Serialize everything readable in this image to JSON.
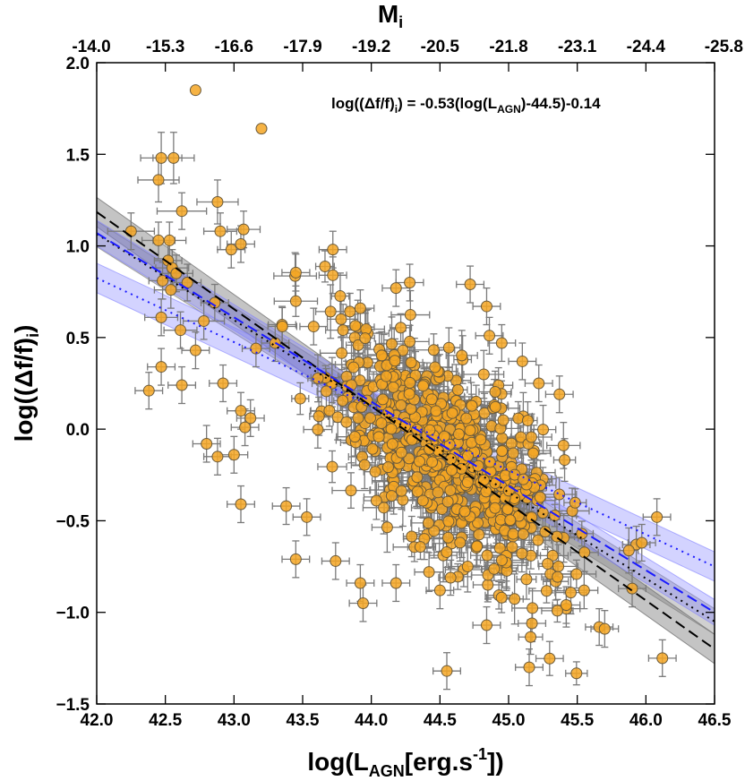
{
  "chart_data": {
    "type": "scatter",
    "title": "",
    "xlabel": "log(L_AGN[erg.s^-1])",
    "xlabel_parts": {
      "pre": "log(L",
      "sub": "AGN",
      "mid": "[erg.s",
      "sup": "-1",
      "post": "])"
    },
    "ylabel": "log((Δf/f)_i)",
    "ylabel_parts": {
      "pre": "log((Δf/f)",
      "sub": "i",
      "post": ")"
    },
    "top_axis_label": "M_i",
    "top_axis_parts": {
      "pre": "M",
      "sub": "i"
    },
    "xlim": [
      42.0,
      46.5
    ],
    "ylim": [
      -1.5,
      2.0
    ],
    "x_ticks": [
      "42.0",
      "42.5",
      "43.0",
      "43.5",
      "44.0",
      "44.5",
      "45.0",
      "45.5",
      "46.0",
      "46.5"
    ],
    "y_ticks": [
      "2.0",
      "1.5",
      "1.0",
      "0.5",
      "0.0",
      "−0.5",
      "−1.0",
      "−1.5"
    ],
    "top_ticks": [
      "-14.0",
      "-15.3",
      "-16.6",
      "-17.9",
      "-19.2",
      "-20.5",
      "-21.8",
      "-23.1",
      "-24.4",
      "-25.8"
    ],
    "annotation": {
      "pre": "log((Δf/f)",
      "sub": "i",
      "mid": ") = -0.53(log(L",
      "sub2": "AGN",
      "post": ")-44.5)-0.14"
    },
    "fits": [
      {
        "name": "black dashed fit",
        "slope": -0.53,
        "pivot": 44.5,
        "intercept": -0.14,
        "color": "#000000",
        "style": "dashed",
        "band": 0.05,
        "band_color": "#555555"
      },
      {
        "name": "black dotted fit",
        "slope": -0.47,
        "pivot": 44.5,
        "intercept": -0.11,
        "color": "#000000",
        "style": "dotted",
        "band": 0.04,
        "band_color": "#777777"
      },
      {
        "name": "blue dashed fit",
        "slope": -0.46,
        "pivot": 44.5,
        "intercept": -0.08,
        "color": "#1a1aff",
        "style": "dashed",
        "band": 0.04,
        "band_color": "#8080ff"
      },
      {
        "name": "blue dotted fit",
        "slope": -0.35,
        "pivot": 44.5,
        "intercept": -0.05,
        "color": "#1a1aff",
        "style": "dotted",
        "band": 0.05,
        "band_color": "#8080ff"
      }
    ],
    "points": [
      [
        42.72,
        1.85,
        0.0,
        0.0
      ],
      [
        43.2,
        1.64,
        0.0,
        0.0
      ],
      [
        42.47,
        1.48,
        0.15,
        0.14
      ],
      [
        42.56,
        1.48,
        0.15,
        0.14
      ],
      [
        42.45,
        1.36,
        0.15,
        0.12
      ],
      [
        42.62,
        1.19,
        0.18,
        0.1
      ],
      [
        42.88,
        1.24,
        0.15,
        0.12
      ],
      [
        42.25,
        1.08,
        0.17,
        0.1
      ],
      [
        42.45,
        1.03,
        0.12,
        0.1
      ],
      [
        42.53,
        1.03,
        0.12,
        0.1
      ],
      [
        43.07,
        1.09,
        0.12,
        0.1
      ],
      [
        42.9,
        1.08,
        0.12,
        0.1
      ],
      [
        43.05,
        1.01,
        0.1,
        0.1
      ],
      [
        42.98,
        0.98,
        0.1,
        0.1
      ],
      [
        42.52,
        0.92,
        0.1,
        0.1
      ],
      [
        42.55,
        0.88,
        0.12,
        0.1
      ],
      [
        42.58,
        0.85,
        0.12,
        0.1
      ],
      [
        42.48,
        0.81,
        0.1,
        0.1
      ],
      [
        42.66,
        0.8,
        0.1,
        0.1
      ],
      [
        42.54,
        0.76,
        0.12,
        0.1
      ],
      [
        42.86,
        0.69,
        0.1,
        0.1
      ],
      [
        42.47,
        0.61,
        0.12,
        0.1
      ],
      [
        42.78,
        0.59,
        0.15,
        0.1
      ],
      [
        42.61,
        0.54,
        0.12,
        0.1
      ],
      [
        42.72,
        0.43,
        0.1,
        0.1
      ],
      [
        42.47,
        0.34,
        0.1,
        0.1
      ],
      [
        42.92,
        0.25,
        0.1,
        0.1
      ],
      [
        42.62,
        0.24,
        0.1,
        0.1
      ],
      [
        42.38,
        0.21,
        0.1,
        0.1
      ],
      [
        43.05,
        0.1,
        0.1,
        0.1
      ],
      [
        43.12,
        0.06,
        0.1,
        0.1
      ],
      [
        43.08,
        0.01,
        0.1,
        0.1
      ],
      [
        42.8,
        -0.08,
        0.1,
        0.1
      ],
      [
        42.88,
        -0.15,
        0.1,
        0.1
      ],
      [
        43.0,
        -0.14,
        0.1,
        0.1
      ],
      [
        43.05,
        -0.41,
        0.1,
        0.1
      ],
      [
        43.38,
        -0.42,
        0.1,
        0.1
      ],
      [
        43.53,
        -0.48,
        0.1,
        0.1
      ],
      [
        43.45,
        -0.71,
        0.1,
        0.1
      ],
      [
        43.74,
        -0.72,
        0.1,
        0.1
      ],
      [
        43.92,
        -0.84,
        0.1,
        0.1
      ],
      [
        43.94,
        -0.95,
        0.1,
        0.1
      ],
      [
        44.18,
        -0.84,
        0.1,
        0.1
      ],
      [
        44.5,
        -0.88,
        0.1,
        0.1
      ],
      [
        44.55,
        -1.32,
        0.1,
        0.1
      ],
      [
        44.84,
        -1.07,
        0.1,
        0.1
      ],
      [
        45.15,
        -1.3,
        0.1,
        0.1
      ],
      [
        45.17,
        -1.06,
        0.1,
        0.1
      ],
      [
        45.42,
        -0.98,
        0.1,
        0.1
      ],
      [
        45.42,
        -0.96,
        0.1,
        0.1
      ],
      [
        45.66,
        -1.08,
        0.1,
        0.1
      ],
      [
        45.7,
        -1.09,
        0.1,
        0.1
      ],
      [
        46.12,
        -1.25,
        0.1,
        0.1
      ],
      [
        46.08,
        -0.48,
        0.1,
        0.1
      ],
      [
        45.9,
        -0.87,
        0.1,
        0.1
      ],
      [
        45.93,
        -0.63,
        0.1,
        0.1
      ],
      [
        45.97,
        -0.62,
        0.1,
        0.1
      ],
      [
        45.55,
        -0.88,
        0.1,
        0.1
      ],
      [
        45.22,
        0.25,
        0.1,
        0.1
      ],
      [
        45.37,
        0.19,
        0.1,
        0.1
      ],
      [
        44.72,
        0.79,
        0.1,
        0.1
      ],
      [
        44.84,
        0.67,
        0.1,
        0.1
      ],
      [
        44.86,
        0.51,
        0.1,
        0.1
      ],
      [
        44.95,
        0.47,
        0.1,
        0.1
      ],
      [
        45.1,
        0.37,
        0.1,
        0.1
      ],
      [
        44.28,
        0.8,
        0.1,
        0.1
      ],
      [
        44.18,
        0.77,
        0.1,
        0.1
      ],
      [
        43.72,
        0.98,
        0.1,
        0.1
      ],
      [
        43.72,
        0.84,
        0.1,
        0.1
      ],
      [
        43.92,
        0.66,
        0.1,
        0.1
      ],
      [
        43.35,
        0.57,
        0.1,
        0.1
      ],
      [
        43.3,
        0.47,
        0.1,
        0.1
      ],
      [
        43.16,
        0.44,
        0.1,
        0.1
      ],
      [
        43.58,
        0.56,
        0.1,
        0.1
      ],
      [
        43.78,
        0.6,
        0.1,
        0.1
      ],
      [
        43.88,
        0.5,
        0.1,
        0.1
      ]
    ]
  }
}
